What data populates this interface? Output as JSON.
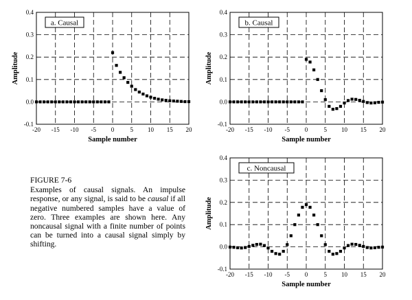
{
  "caption": {
    "figure_label": "FIGURE 7-6",
    "body_part1": "Examples of causal signals. An impulse response, or any signal, is said to be ",
    "body_emphasis": "causal",
    "body_part2": " if all negative numbered samples have a value of zero.  Three examples are shown here.  Any noncausal signal with a finite number of points can be turned into a causal signal simply by shifting."
  },
  "chart_data": [
    {
      "type": "scatter",
      "panel": "a",
      "title": "a.  Causal",
      "xlabel": "Sample number",
      "ylabel": "Amplitude",
      "xlim": [
        -20,
        20
      ],
      "ylim": [
        -0.1,
        0.4
      ],
      "xticks": [
        -20,
        -15,
        -10,
        -5,
        0,
        5,
        10,
        15,
        20
      ],
      "yticks": [
        -0.1,
        0.0,
        0.1,
        0.2,
        0.3,
        0.4
      ],
      "xtick_labels": [
        "-20",
        "-15",
        "-10",
        "-5",
        "0",
        "5",
        "10",
        "15",
        "20"
      ],
      "ytick_labels": [
        "-0.1",
        "0.0",
        "0.1",
        "0.2",
        "0.3",
        "0.4"
      ],
      "grid": true,
      "x": [
        -20,
        -19,
        -18,
        -17,
        -16,
        -15,
        -14,
        -13,
        -12,
        -11,
        -10,
        -9,
        -8,
        -7,
        -6,
        -5,
        -4,
        -3,
        -2,
        -1,
        0,
        1,
        2,
        3,
        4,
        5,
        6,
        7,
        8,
        9,
        10,
        11,
        12,
        13,
        14,
        15,
        16,
        17,
        18,
        19,
        20
      ],
      "y": [
        0,
        0,
        0,
        0,
        0,
        0,
        0,
        0,
        0,
        0,
        0,
        0,
        0,
        0,
        0,
        0,
        0,
        0,
        0,
        0,
        0.22,
        0.163,
        0.132,
        0.108,
        0.087,
        0.07,
        0.055,
        0.044,
        0.035,
        0.027,
        0.021,
        0.016,
        0.012,
        0.009,
        0.007,
        0.005,
        0.004,
        0.003,
        0.002,
        0.001,
        0.001
      ]
    },
    {
      "type": "scatter",
      "panel": "b",
      "title": "b.  Causal",
      "xlabel": "Sample number",
      "ylabel": "Amplitude",
      "xlim": [
        -20,
        20
      ],
      "ylim": [
        -0.1,
        0.4
      ],
      "xticks": [
        -20,
        -15,
        -10,
        -5,
        0,
        5,
        10,
        15,
        20
      ],
      "yticks": [
        -0.1,
        0.0,
        0.1,
        0.2,
        0.3,
        0.4
      ],
      "xtick_labels": [
        "-20",
        "-15",
        "-10",
        "-5",
        "0",
        "5",
        "10",
        "15",
        "20"
      ],
      "ytick_labels": [
        "-0.1",
        "0.0",
        "0.1",
        "0.2",
        "0.3",
        "0.4"
      ],
      "grid": true,
      "x": [
        -20,
        -19,
        -18,
        -17,
        -16,
        -15,
        -14,
        -13,
        -12,
        -11,
        -10,
        -9,
        -8,
        -7,
        -6,
        -5,
        -4,
        -3,
        -2,
        -1,
        0,
        1,
        2,
        3,
        4,
        5,
        6,
        7,
        8,
        9,
        10,
        11,
        12,
        13,
        14,
        15,
        16,
        17,
        18,
        19,
        20
      ],
      "y": [
        0,
        0,
        0,
        0,
        0,
        0,
        0,
        0,
        0,
        0,
        0,
        0,
        0,
        0,
        0,
        0,
        0,
        0,
        0,
        0,
        0.19,
        0.178,
        0.143,
        0.1,
        0.05,
        0.01,
        -0.02,
        -0.033,
        -0.03,
        -0.02,
        -0.005,
        0.006,
        0.012,
        0.011,
        0.007,
        0.002,
        -0.003,
        -0.005,
        -0.004,
        -0.002,
        -0.001
      ]
    },
    {
      "type": "scatter",
      "panel": "c",
      "title": "c.  Noncausal",
      "xlabel": "Sample number",
      "ylabel": "Amplitude",
      "xlim": [
        -20,
        20
      ],
      "ylim": [
        -0.1,
        0.4
      ],
      "xticks": [
        -20,
        -15,
        -10,
        -5,
        0,
        5,
        10,
        15,
        20
      ],
      "yticks": [
        -0.1,
        0.0,
        0.1,
        0.2,
        0.3,
        0.4
      ],
      "xtick_labels": [
        "-20",
        "-15",
        "-10",
        "-5",
        "0",
        "5",
        "10",
        "15",
        "20"
      ],
      "ytick_labels": [
        "-0.1",
        "0.0",
        "0.1",
        "0.2",
        "0.3",
        "0.4"
      ],
      "grid": true,
      "x": [
        -20,
        -19,
        -18,
        -17,
        -16,
        -15,
        -14,
        -13,
        -12,
        -11,
        -10,
        -9,
        -8,
        -7,
        -6,
        -5,
        -4,
        -3,
        -2,
        -1,
        0,
        1,
        2,
        3,
        4,
        5,
        6,
        7,
        8,
        9,
        10,
        11,
        12,
        13,
        14,
        15,
        16,
        17,
        18,
        19,
        20
      ],
      "y": [
        -0.001,
        -0.002,
        -0.004,
        -0.005,
        -0.003,
        0.002,
        0.007,
        0.011,
        0.012,
        0.006,
        -0.005,
        -0.02,
        -0.03,
        -0.033,
        -0.02,
        0.01,
        0.05,
        0.1,
        0.143,
        0.178,
        0.19,
        0.178,
        0.143,
        0.1,
        0.05,
        0.01,
        -0.02,
        -0.033,
        -0.03,
        -0.02,
        -0.005,
        0.006,
        0.012,
        0.011,
        0.007,
        0.002,
        -0.003,
        -0.005,
        -0.004,
        -0.002,
        -0.001
      ]
    }
  ]
}
